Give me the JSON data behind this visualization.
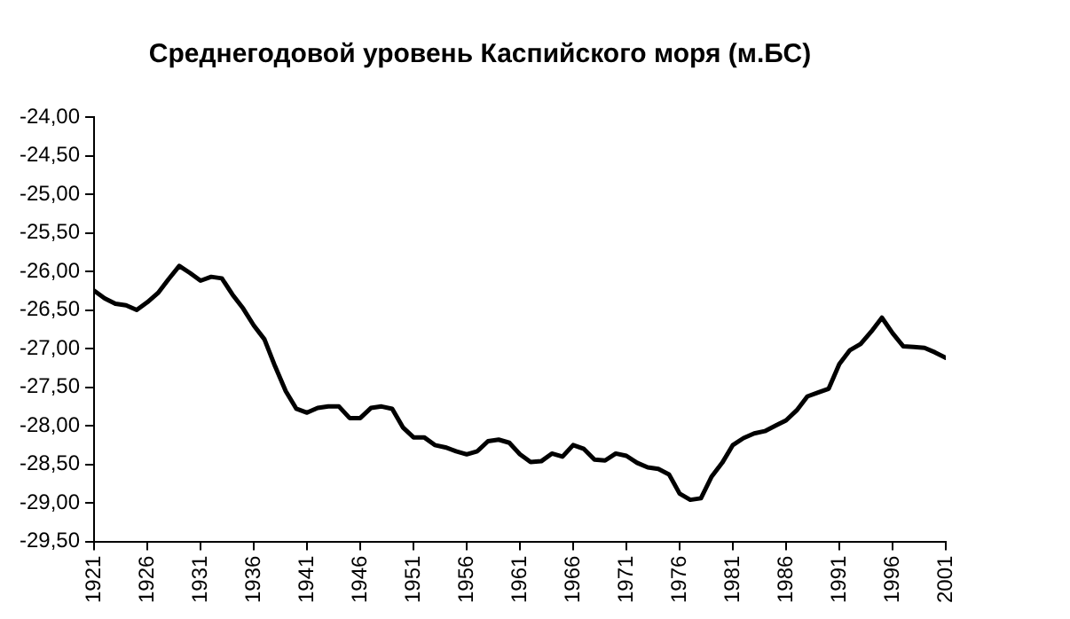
{
  "chart_data": {
    "type": "line",
    "title": "Среднегодовой уровень Каспийского моря (м.БС)",
    "x": [
      1921,
      1922,
      1923,
      1924,
      1925,
      1926,
      1927,
      1928,
      1929,
      1930,
      1931,
      1932,
      1933,
      1934,
      1935,
      1936,
      1937,
      1938,
      1939,
      1940,
      1941,
      1942,
      1943,
      1944,
      1945,
      1946,
      1947,
      1948,
      1949,
      1950,
      1951,
      1952,
      1953,
      1954,
      1955,
      1956,
      1957,
      1958,
      1959,
      1960,
      1961,
      1962,
      1963,
      1964,
      1965,
      1966,
      1967,
      1968,
      1969,
      1970,
      1971,
      1972,
      1973,
      1974,
      1975,
      1976,
      1977,
      1978,
      1979,
      1980,
      1981,
      1982,
      1983,
      1984,
      1985,
      1986,
      1987,
      1988,
      1989,
      1990,
      1991,
      1992,
      1993,
      1994,
      1995,
      1996,
      1997,
      1998,
      1999,
      2000,
      2001
    ],
    "series": [
      {
        "color": "#000000",
        "values": [
          -26.25,
          -26.35,
          -26.42,
          -26.44,
          -26.5,
          -26.4,
          -26.28,
          -26.1,
          -25.93,
          -26.02,
          -26.12,
          -26.07,
          -26.09,
          -26.3,
          -26.48,
          -26.7,
          -26.88,
          -27.23,
          -27.55,
          -27.78,
          -27.83,
          -27.77,
          -27.75,
          -27.75,
          -27.9,
          -27.9,
          -27.77,
          -27.75,
          -27.78,
          -28.02,
          -28.15,
          -28.15,
          -28.25,
          -28.28,
          -28.33,
          -28.37,
          -28.33,
          -28.2,
          -28.18,
          -28.22,
          -28.37,
          -28.47,
          -28.46,
          -28.36,
          -28.4,
          -28.25,
          -28.3,
          -28.44,
          -28.45,
          -28.36,
          -28.39,
          -28.48,
          -28.54,
          -28.56,
          -28.63,
          -28.88,
          -28.96,
          -28.94,
          -28.66,
          -28.48,
          -28.25,
          -28.16,
          -28.1,
          -28.07,
          -28.0,
          -27.93,
          -27.8,
          -27.62,
          -27.57,
          -27.52,
          -27.2,
          -27.02,
          -26.94,
          -26.78,
          -26.6,
          -26.8,
          -26.97,
          -26.98,
          -26.99,
          -27.05,
          -27.12
        ]
      }
    ],
    "xlim": [
      1921,
      2001
    ],
    "xticks": [
      1921,
      1926,
      1931,
      1936,
      1941,
      1946,
      1951,
      1956,
      1961,
      1966,
      1971,
      1976,
      1981,
      1986,
      1991,
      1996,
      2001
    ],
    "ylim": [
      -29.5,
      -24
    ],
    "yticks": [
      {
        "value": -29.5,
        "label": "-29,50"
      },
      {
        "value": -29,
        "label": "-29,00"
      },
      {
        "value": -28.5,
        "label": "-28,50"
      },
      {
        "value": -28,
        "label": "-28,00"
      },
      {
        "value": -27.5,
        "label": "-27,50"
      },
      {
        "value": -27,
        "label": "-27,00"
      },
      {
        "value": -26.5,
        "label": "-26,50"
      },
      {
        "value": -26,
        "label": "-26,00"
      },
      {
        "value": -25.5,
        "label": "-25,50"
      },
      {
        "value": -25,
        "label": "-25,00"
      },
      {
        "value": -24.5,
        "label": "-24,50"
      },
      {
        "value": -24,
        "label": "-24,00"
      }
    ],
    "grid": false,
    "legend": false,
    "marker": "none",
    "line_style": "solid"
  }
}
